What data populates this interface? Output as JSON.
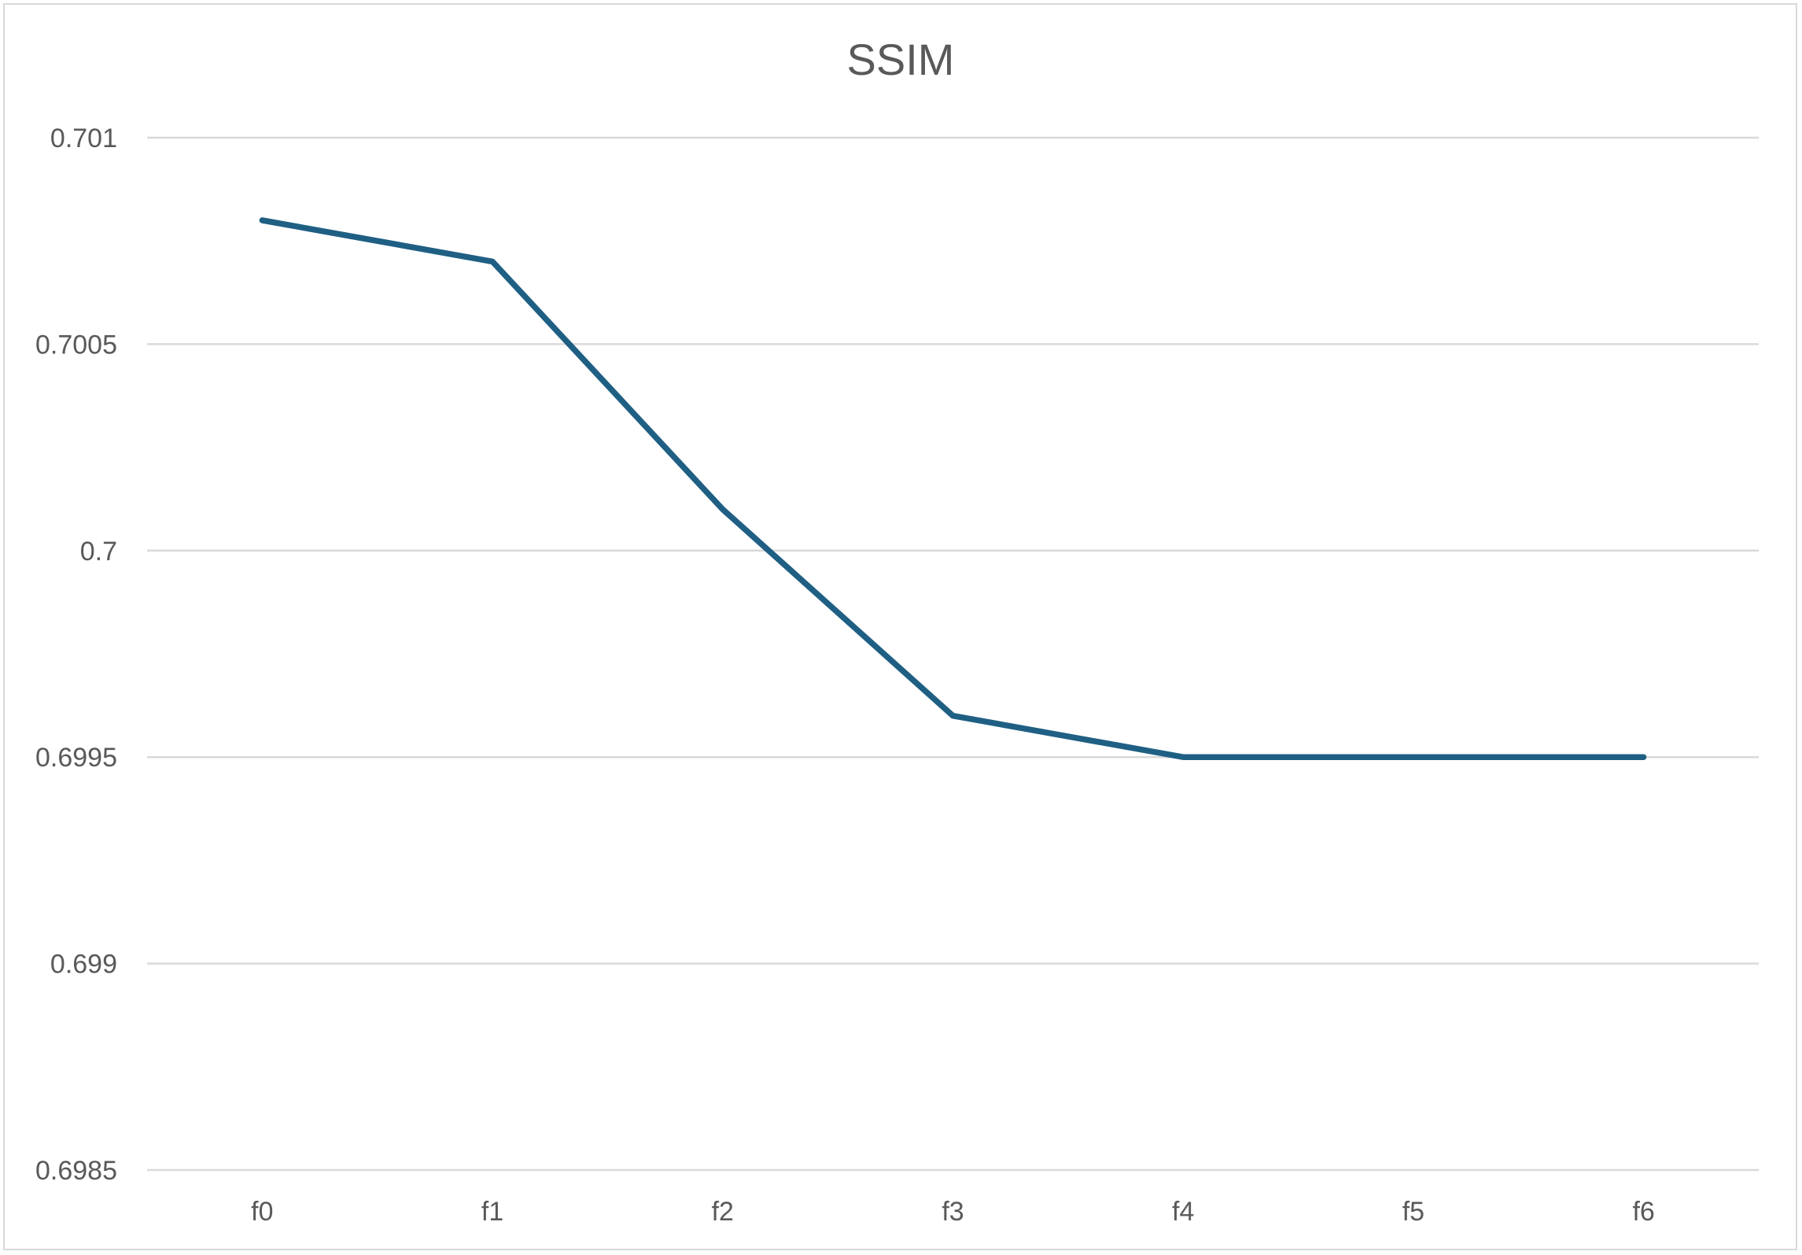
{
  "chart_data": {
    "type": "line",
    "title": "SSIM",
    "xlabel": "",
    "ylabel": "",
    "categories": [
      "f0",
      "f1",
      "f2",
      "f3",
      "f4",
      "f5",
      "f6"
    ],
    "series": [
      {
        "name": "SSIM",
        "color": "#1f5f84",
        "values": [
          0.7008,
          0.7007,
          0.7001,
          0.6996,
          0.6995,
          0.6995,
          0.6995
        ]
      }
    ],
    "ylim": [
      0.6985,
      0.701
    ],
    "yticks": [
      0.701,
      0.7005,
      0.7,
      0.6995,
      0.699,
      0.6985
    ],
    "ytick_labels": [
      "0.701",
      "0.7005",
      "0.7",
      "0.6995",
      "0.699",
      "0.6985"
    ],
    "grid": true,
    "legend": "none"
  }
}
